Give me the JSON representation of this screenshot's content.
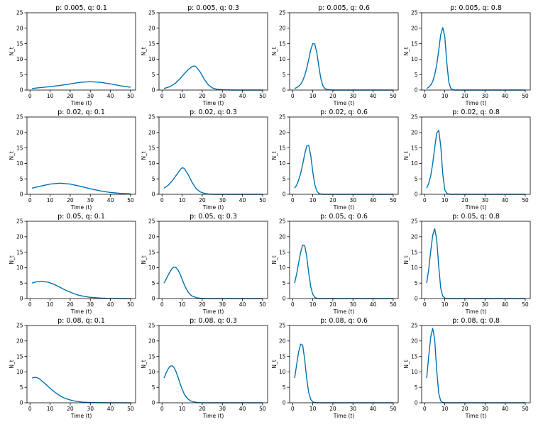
{
  "figure": {
    "line_color": "#0072B2",
    "layout": {
      "rows": 4,
      "cols": 4
    }
  },
  "chart_data": [
    {
      "type": "line",
      "title": "p: 0.005, q: 0.1",
      "xlabel": "Time (t)",
      "ylabel": "N_t",
      "xlim": [
        -1.5,
        52.5
      ],
      "ylim": [
        0,
        25
      ],
      "xticks": [
        0,
        10,
        20,
        30,
        40,
        50
      ],
      "yticks": [
        0,
        5,
        10,
        15,
        20,
        25
      ],
      "grid": false,
      "series": [
        {
          "x": [
            1,
            5,
            10,
            15,
            20,
            25,
            30,
            35,
            40,
            45,
            50
          ],
          "y": [
            0.5,
            0.8,
            1.1,
            1.5,
            2.0,
            2.5,
            2.7,
            2.5,
            2.0,
            1.4,
            0.9
          ]
        }
      ]
    },
    {
      "type": "line",
      "title": "p: 0.005, q: 0.3",
      "xlabel": "Time (t)",
      "ylabel": "N_t",
      "xlim": [
        -1.5,
        52.5
      ],
      "ylim": [
        0,
        25
      ],
      "xticks": [
        0,
        10,
        20,
        30,
        40,
        50
      ],
      "yticks": [
        0,
        5,
        10,
        15,
        20,
        25
      ],
      "grid": false,
      "series": [
        {
          "x": [
            1,
            3,
            5,
            7,
            9,
            11,
            13,
            15,
            16,
            17,
            19,
            21,
            23,
            25,
            27,
            30,
            35,
            40,
            45,
            50
          ],
          "y": [
            0.5,
            0.9,
            1.5,
            2.4,
            3.7,
            5.2,
            6.6,
            7.6,
            7.8,
            7.5,
            5.8,
            3.5,
            1.7,
            0.7,
            0.3,
            0.1,
            0.0,
            0.0,
            0.0,
            0.0
          ]
        }
      ]
    },
    {
      "type": "line",
      "title": "p: 0.005, q: 0.6",
      "xlabel": "Time (t)",
      "ylabel": "N_t",
      "xlim": [
        -1.5,
        52.5
      ],
      "ylim": [
        0,
        25
      ],
      "xticks": [
        0,
        10,
        20,
        30,
        40,
        50
      ],
      "yticks": [
        0,
        5,
        10,
        15,
        20,
        25
      ],
      "grid": false,
      "series": [
        {
          "x": [
            1,
            2,
            3,
            4,
            5,
            6,
            7,
            8,
            9,
            10,
            11,
            12,
            13,
            14,
            15,
            16,
            17,
            18,
            20,
            25,
            30,
            40,
            50
          ],
          "y": [
            0.5,
            0.8,
            1.2,
            1.9,
            3.0,
            4.7,
            7.0,
            9.9,
            13.0,
            15.0,
            14.9,
            12.2,
            7.8,
            3.8,
            1.5,
            0.5,
            0.2,
            0.1,
            0.0,
            0.0,
            0.0,
            0.0,
            0.0
          ]
        }
      ]
    },
    {
      "type": "line",
      "title": "p: 0.005, q: 0.8",
      "xlabel": "Time (t)",
      "ylabel": "N_t",
      "xlim": [
        -1.5,
        52.5
      ],
      "ylim": [
        0,
        25
      ],
      "xticks": [
        0,
        10,
        20,
        30,
        40,
        50
      ],
      "yticks": [
        0,
        5,
        10,
        15,
        20,
        25
      ],
      "grid": false,
      "series": [
        {
          "x": [
            1,
            2,
            3,
            4,
            5,
            6,
            7,
            8,
            9,
            10,
            11,
            12,
            13,
            14,
            15,
            20,
            30,
            40,
            50
          ],
          "y": [
            0.5,
            0.9,
            1.6,
            2.8,
            4.9,
            8.2,
            12.9,
            18.0,
            20.2,
            17.3,
            9.0,
            2.6,
            0.5,
            0.1,
            0.0,
            0.0,
            0.0,
            0.0,
            0.0
          ]
        }
      ]
    },
    {
      "type": "line",
      "title": "p: 0.02, q: 0.1",
      "xlabel": "Time (t)",
      "ylabel": "N_t",
      "xlim": [
        -1.5,
        52.5
      ],
      "ylim": [
        0,
        25
      ],
      "xticks": [
        0,
        10,
        20,
        30,
        40,
        50
      ],
      "yticks": [
        0,
        5,
        10,
        15,
        20,
        25
      ],
      "grid": false,
      "series": [
        {
          "x": [
            1,
            5,
            10,
            15,
            20,
            25,
            30,
            35,
            40,
            45,
            50
          ],
          "y": [
            2.0,
            2.6,
            3.3,
            3.6,
            3.3,
            2.6,
            1.8,
            1.1,
            0.6,
            0.3,
            0.15
          ]
        }
      ]
    },
    {
      "type": "line",
      "title": "p: 0.02, q: 0.3",
      "xlabel": "Time (t)",
      "ylabel": "N_t",
      "xlim": [
        -1.5,
        52.5
      ],
      "ylim": [
        0,
        25
      ],
      "xticks": [
        0,
        10,
        20,
        30,
        40,
        50
      ],
      "yticks": [
        0,
        5,
        10,
        15,
        20,
        25
      ],
      "grid": false,
      "series": [
        {
          "x": [
            1,
            3,
            5,
            7,
            9,
            10,
            11,
            13,
            15,
            17,
            19,
            21,
            23,
            25,
            30,
            40,
            50
          ],
          "y": [
            2.0,
            2.9,
            4.3,
            6.1,
            7.9,
            8.6,
            8.4,
            6.4,
            3.8,
            1.8,
            0.8,
            0.3,
            0.1,
            0.0,
            0.0,
            0.0,
            0.0
          ]
        }
      ]
    },
    {
      "type": "line",
      "title": "p: 0.02, q: 0.6",
      "xlabel": "Time (t)",
      "ylabel": "N_t",
      "xlim": [
        -1.5,
        52.5
      ],
      "ylim": [
        0,
        25
      ],
      "xticks": [
        0,
        10,
        20,
        30,
        40,
        50
      ],
      "yticks": [
        0,
        5,
        10,
        15,
        20,
        25
      ],
      "grid": false,
      "series": [
        {
          "x": [
            1,
            2,
            3,
            4,
            5,
            6,
            7,
            8,
            9,
            10,
            11,
            12,
            13,
            14,
            15,
            20,
            30,
            40,
            50
          ],
          "y": [
            2.0,
            3.0,
            4.6,
            6.8,
            9.7,
            13.0,
            15.6,
            15.8,
            12.6,
            7.3,
            3.2,
            1.1,
            0.3,
            0.1,
            0.0,
            0.0,
            0.0,
            0.0,
            0.0
          ]
        }
      ]
    },
    {
      "type": "line",
      "title": "p: 0.02, q: 0.8",
      "xlabel": "Time (t)",
      "ylabel": "N_t",
      "xlim": [
        -1.5,
        52.5
      ],
      "ylim": [
        0,
        25
      ],
      "xticks": [
        0,
        10,
        20,
        30,
        40,
        50
      ],
      "yticks": [
        0,
        5,
        10,
        15,
        20,
        25
      ],
      "grid": false,
      "series": [
        {
          "x": [
            1,
            2,
            3,
            4,
            5,
            6,
            7,
            8,
            9,
            10,
            11,
            12,
            13,
            15,
            20,
            30,
            40,
            50
          ],
          "y": [
            2.0,
            3.5,
            6.0,
            9.9,
            15.1,
            19.8,
            20.7,
            15.6,
            6.6,
            1.5,
            0.3,
            0.1,
            0.0,
            0.0,
            0.0,
            0.0,
            0.0,
            0.0
          ]
        }
      ]
    },
    {
      "type": "line",
      "title": "p: 0.05, q: 0.1",
      "xlabel": "Time (t)",
      "ylabel": "N_t",
      "xlim": [
        -1.5,
        52.5
      ],
      "ylim": [
        0,
        25
      ],
      "xticks": [
        0,
        10,
        20,
        30,
        40,
        50
      ],
      "yticks": [
        0,
        5,
        10,
        15,
        20,
        25
      ],
      "grid": false,
      "series": [
        {
          "x": [
            1,
            3,
            6,
            9,
            12,
            15,
            18,
            21,
            24,
            27,
            30,
            35,
            40,
            45,
            50
          ],
          "y": [
            5.0,
            5.4,
            5.6,
            5.3,
            4.6,
            3.6,
            2.6,
            1.8,
            1.1,
            0.7,
            0.4,
            0.15,
            0.05,
            0.0,
            0.0
          ]
        }
      ]
    },
    {
      "type": "line",
      "title": "p: 0.05, q: 0.3",
      "xlabel": "Time (t)",
      "ylabel": "N_t",
      "xlim": [
        -1.5,
        52.5
      ],
      "ylim": [
        0,
        25
      ],
      "xticks": [
        0,
        10,
        20,
        30,
        40,
        50
      ],
      "yticks": [
        0,
        5,
        10,
        15,
        20,
        25
      ],
      "grid": false,
      "series": [
        {
          "x": [
            1,
            2,
            3,
            4,
            5,
            6,
            7,
            8,
            9,
            10,
            11,
            12,
            13,
            14,
            15,
            17,
            19,
            21,
            25,
            30,
            40,
            50
          ],
          "y": [
            5.0,
            6.2,
            7.5,
            8.7,
            9.7,
            10.2,
            10.0,
            9.2,
            7.9,
            6.2,
            4.6,
            3.2,
            2.1,
            1.3,
            0.8,
            0.3,
            0.1,
            0.0,
            0.0,
            0.0,
            0.0,
            0.0
          ]
        }
      ]
    },
    {
      "type": "line",
      "title": "p: 0.05, q: 0.6",
      "xlabel": "Time (t)",
      "ylabel": "N_t",
      "xlim": [
        -1.5,
        52.5
      ],
      "ylim": [
        0,
        25
      ],
      "xticks": [
        0,
        10,
        20,
        30,
        40,
        50
      ],
      "yticks": [
        0,
        5,
        10,
        15,
        20,
        25
      ],
      "grid": false,
      "series": [
        {
          "x": [
            1,
            2,
            3,
            4,
            5,
            6,
            7,
            8,
            9,
            10,
            11,
            12,
            13,
            15,
            20,
            30,
            40,
            50
          ],
          "y": [
            5.0,
            8.0,
            11.6,
            15.0,
            17.3,
            17.1,
            13.7,
            8.3,
            3.8,
            1.4,
            0.4,
            0.1,
            0.0,
            0.0,
            0.0,
            0.0,
            0.0,
            0.0
          ]
        }
      ]
    },
    {
      "type": "line",
      "title": "p: 0.05, q: 0.8",
      "xlabel": "Time (t)",
      "ylabel": "N_t",
      "xlim": [
        -1.5,
        52.5
      ],
      "ylim": [
        0,
        25
      ],
      "xticks": [
        0,
        10,
        20,
        30,
        40,
        50
      ],
      "yticks": [
        0,
        5,
        10,
        15,
        20,
        25
      ],
      "grid": false,
      "series": [
        {
          "x": [
            1,
            2,
            3,
            4,
            5,
            6,
            7,
            8,
            9,
            10,
            11,
            12,
            15,
            20,
            30,
            40,
            50
          ],
          "y": [
            5.0,
            9.4,
            15.3,
            20.5,
            22.6,
            19.0,
            10.3,
            3.3,
            0.8,
            0.2,
            0.0,
            0.0,
            0.0,
            0.0,
            0.0,
            0.0,
            0.0
          ]
        }
      ]
    },
    {
      "type": "line",
      "title": "p: 0.08, q: 0.1",
      "xlabel": "Time (t)",
      "ylabel": "N_t",
      "xlim": [
        -1.5,
        52.5
      ],
      "ylim": [
        0,
        25
      ],
      "xticks": [
        0,
        10,
        20,
        30,
        40,
        50
      ],
      "yticks": [
        0,
        5,
        10,
        15,
        20,
        25
      ],
      "grid": false,
      "series": [
        {
          "x": [
            1,
            2,
            3,
            4,
            5,
            6,
            8,
            10,
            12,
            14,
            16,
            18,
            20,
            22,
            24,
            26,
            28,
            30,
            35,
            40,
            45,
            50
          ],
          "y": [
            8.0,
            8.2,
            8.2,
            8.0,
            7.6,
            7.0,
            5.9,
            4.7,
            3.6,
            2.7,
            1.9,
            1.3,
            0.9,
            0.6,
            0.4,
            0.25,
            0.15,
            0.1,
            0.03,
            0.0,
            0.0,
            0.0
          ]
        }
      ]
    },
    {
      "type": "line",
      "title": "p: 0.08, q: 0.3",
      "xlabel": "Time (t)",
      "ylabel": "N_t",
      "xlim": [
        -1.5,
        52.5
      ],
      "ylim": [
        0,
        25
      ],
      "xticks": [
        0,
        10,
        20,
        30,
        40,
        50
      ],
      "yticks": [
        0,
        5,
        10,
        15,
        20,
        25
      ],
      "grid": false,
      "series": [
        {
          "x": [
            1,
            2,
            3,
            4,
            5,
            6,
            7,
            8,
            9,
            10,
            11,
            12,
            13,
            14,
            15,
            17,
            19,
            21,
            25,
            30,
            40,
            50
          ],
          "y": [
            8.0,
            9.6,
            10.9,
            11.8,
            12.0,
            11.4,
            10.0,
            8.2,
            6.2,
            4.4,
            2.9,
            1.9,
            1.2,
            0.7,
            0.4,
            0.15,
            0.05,
            0.0,
            0.0,
            0.0,
            0.0,
            0.0
          ]
        }
      ]
    },
    {
      "type": "line",
      "title": "p: 0.08, q: 0.6",
      "xlabel": "Time (t)",
      "ylabel": "N_t",
      "xlim": [
        -1.5,
        52.5
      ],
      "ylim": [
        0,
        25
      ],
      "xticks": [
        0,
        10,
        20,
        30,
        40,
        50
      ],
      "yticks": [
        0,
        5,
        10,
        15,
        20,
        25
      ],
      "grid": false,
      "series": [
        {
          "x": [
            1,
            2,
            3,
            4,
            5,
            6,
            7,
            8,
            9,
            10,
            11,
            12,
            15,
            20,
            30,
            40,
            50
          ],
          "y": [
            8.0,
            12.4,
            16.5,
            19.0,
            18.6,
            14.0,
            7.8,
            3.3,
            1.1,
            0.3,
            0.1,
            0.0,
            0.0,
            0.0,
            0.0,
            0.0,
            0.0
          ]
        }
      ]
    },
    {
      "type": "line",
      "title": "p: 0.08, q: 0.8",
      "xlabel": "Time (t)",
      "ylabel": "N_t",
      "xlim": [
        -1.5,
        52.5
      ],
      "ylim": [
        0,
        25
      ],
      "xticks": [
        0,
        10,
        20,
        30,
        40,
        50
      ],
      "yticks": [
        0,
        5,
        10,
        15,
        20,
        25
      ],
      "grid": false,
      "series": [
        {
          "x": [
            1,
            2,
            3,
            4,
            5,
            6,
            7,
            8,
            9,
            10,
            11,
            15,
            20,
            30,
            40,
            50
          ],
          "y": [
            8.0,
            15.0,
            21.2,
            24.1,
            20.4,
            10.4,
            3.0,
            0.6,
            0.1,
            0.0,
            0.0,
            0.0,
            0.0,
            0.0,
            0.0,
            0.0
          ]
        }
      ]
    }
  ]
}
